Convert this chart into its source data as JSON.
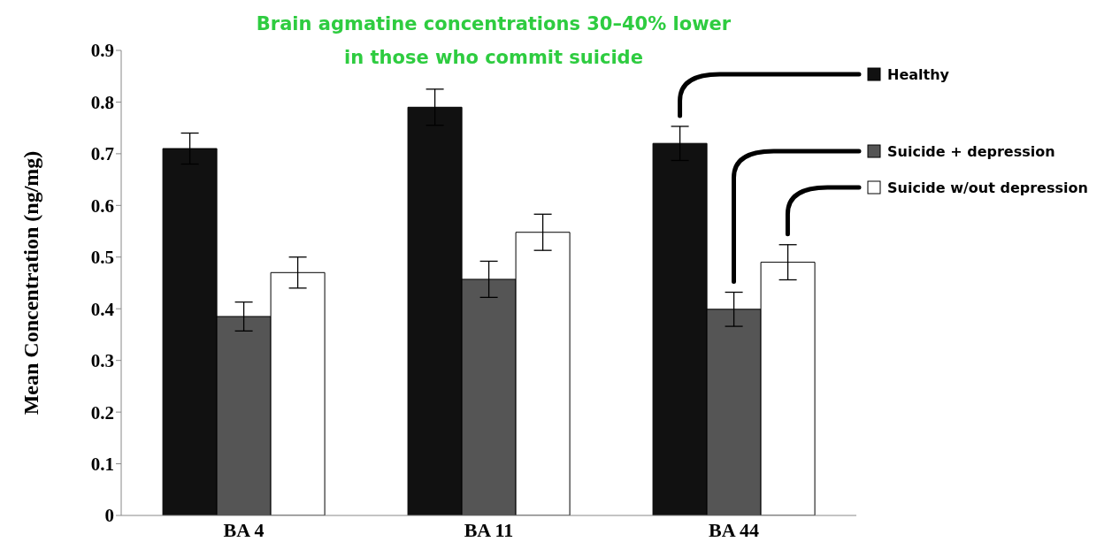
{
  "chart_data": {
    "type": "bar",
    "title": "Brain agmatine concentrations 30–40% lower\nin those who commit suicide",
    "ylabel": "Mean Concentration (ng/mg)",
    "categories": [
      "BA 4",
      "BA 11",
      "BA 44"
    ],
    "series": [
      {
        "name": "Healthy",
        "color": "#111111",
        "values": [
          0.71,
          0.79,
          0.72
        ],
        "errors": [
          0.03,
          0.035,
          0.033
        ]
      },
      {
        "name": "Suicide + depression",
        "color": "#555555",
        "values": [
          0.385,
          0.457,
          0.399
        ],
        "errors": [
          0.028,
          0.035,
          0.033
        ]
      },
      {
        "name": "Suicide w/out depression",
        "color": "#ffffff",
        "values": [
          0.47,
          0.548,
          0.49
        ],
        "errors": [
          0.03,
          0.035,
          0.034
        ]
      }
    ],
    "ylim": [
      0,
      0.9
    ],
    "yticks": [
      0,
      0.1,
      0.2,
      0.3,
      0.4,
      0.5,
      0.6,
      0.7,
      0.8,
      0.9
    ],
    "grid": false,
    "legend": "right"
  }
}
